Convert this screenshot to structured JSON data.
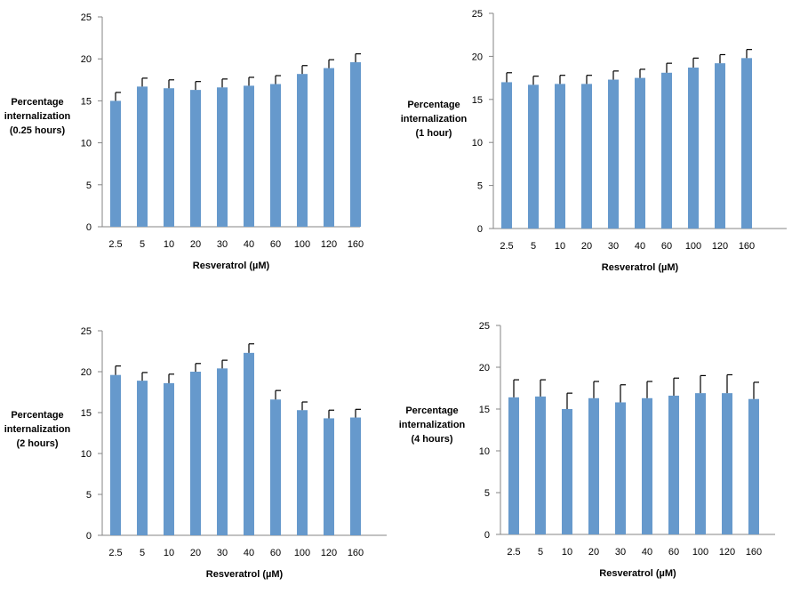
{
  "colors": {
    "bar": "#6699CC",
    "axis": "#868686",
    "error": "#000000"
  },
  "chart_data": [
    {
      "type": "bar",
      "categories": [
        "2.5",
        "5",
        "10",
        "20",
        "30",
        "40",
        "60",
        "100",
        "120",
        "160"
      ],
      "values": [
        15.0,
        16.7,
        16.5,
        16.3,
        16.6,
        16.8,
        17.0,
        18.2,
        18.9,
        19.6
      ],
      "errors": [
        1.0,
        1.0,
        1.0,
        1.0,
        1.0,
        1.0,
        1.0,
        1.0,
        1.0,
        1.0
      ],
      "ylabel_lines": [
        "Percentage",
        "internalization",
        "(0.25 hours)"
      ],
      "xlabel": "Resveratrol (µM)",
      "ylim": [
        0,
        25
      ],
      "yticks": [
        0,
        5,
        10,
        15,
        20,
        25
      ]
    },
    {
      "type": "bar",
      "categories": [
        "2.5",
        "5",
        "10",
        "20",
        "30",
        "40",
        "60",
        "100",
        "120",
        "160"
      ],
      "values": [
        17.0,
        16.7,
        16.8,
        16.8,
        17.3,
        17.5,
        18.1,
        18.7,
        19.2,
        19.8
      ],
      "errors": [
        1.1,
        1.0,
        1.0,
        1.0,
        1.0,
        1.0,
        1.1,
        1.1,
        1.0,
        1.0
      ],
      "ylabel_lines": [
        "Percentage",
        "internalization",
        "(1 hour)"
      ],
      "xlabel": "Resveratrol (µM)",
      "ylim": [
        0,
        25
      ],
      "yticks": [
        0,
        5,
        10,
        15,
        20,
        25
      ]
    },
    {
      "type": "bar",
      "categories": [
        "2.5",
        "5",
        "10",
        "20",
        "30",
        "40",
        "60",
        "100",
        "120",
        "160"
      ],
      "values": [
        19.6,
        18.9,
        18.6,
        20.0,
        20.4,
        22.3,
        16.6,
        15.3,
        14.3,
        14.4
      ],
      "errors": [
        1.1,
        1.0,
        1.1,
        1.0,
        1.0,
        1.1,
        1.1,
        1.0,
        1.0,
        1.0
      ],
      "ylabel_lines": [
        "Percentage",
        "internalization",
        "(2 hours)"
      ],
      "xlabel": "Resveratrol (µM)",
      "ylim": [
        0,
        25
      ],
      "yticks": [
        0,
        5,
        10,
        15,
        20,
        25
      ]
    },
    {
      "type": "bar",
      "categories": [
        "2.5",
        "5",
        "10",
        "20",
        "30",
        "40",
        "60",
        "100",
        "120",
        "160"
      ],
      "values": [
        16.4,
        16.5,
        15.0,
        16.3,
        15.8,
        16.3,
        16.6,
        16.9,
        16.9,
        16.2
      ],
      "errors": [
        2.1,
        2.0,
        1.9,
        2.0,
        2.1,
        2.0,
        2.1,
        2.1,
        2.2,
        2.0
      ],
      "ylabel_lines": [
        "Percentage",
        "internalization",
        "(4 hours)"
      ],
      "xlabel": "Resveratrol (µM)",
      "ylim": [
        0,
        25
      ],
      "yticks": [
        0,
        5,
        10,
        15,
        20,
        25
      ]
    }
  ]
}
